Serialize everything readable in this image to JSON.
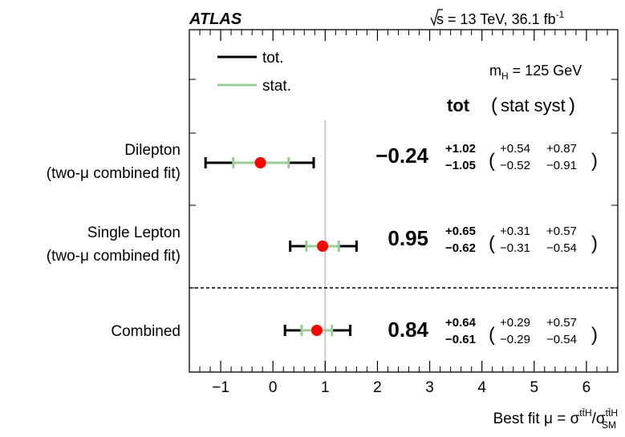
{
  "header": {
    "experiment": "ATLAS",
    "energy_prefix": "s",
    "energy_text": " = 13 TeV, 36.1 fb",
    "lumi_exp": "-1"
  },
  "annotation": {
    "mh_m": "m",
    "mh_sub": "H",
    "mh_rest": " = 125 GeV",
    "tot": "tot",
    "stat_syst_open": "(",
    "stat_syst": "stat  syst",
    "stat_syst_close": ")"
  },
  "legend": {
    "tot_label": "tot.",
    "stat_label": "stat.",
    "tot_color": "#000000",
    "stat_color": "#99cc99"
  },
  "xaxis": {
    "title_prefix": "Best fit μ = σ",
    "title_num_sup": "tt̄H",
    "title_slash": "/σ",
    "title_den_sup": "tt̄H",
    "title_den_sub": "SM"
  },
  "chart_data": {
    "type": "scatter",
    "title": "",
    "xlabel": "Best fit μ = σ^{ttH}/σ^{ttH}_{SM}",
    "ylabel": "",
    "xlim": [
      -1.6,
      6.6
    ],
    "xticks": [
      "−1",
      "0",
      "1",
      "2",
      "3",
      "4",
      "5",
      "6"
    ],
    "xtick_values": [
      -1,
      0,
      1,
      2,
      3,
      4,
      5,
      6
    ],
    "reference_line": 1,
    "marker_color": "#ff0000",
    "grid": false,
    "legend_position": "top-left",
    "rows": [
      {
        "label_line1": "Dilepton",
        "label_line2": "(two-μ combined fit)",
        "mu": -0.24,
        "mu_text": "−0.24",
        "tot_up": 1.02,
        "tot_down": 1.05,
        "tot_up_text": "+1.02",
        "tot_down_text": "−1.05",
        "stat_up": 0.54,
        "stat_down": 0.52,
        "stat_up_text": "+0.54",
        "stat_down_text": "−0.52",
        "syst_up_text": "+0.87",
        "syst_down_text": "−0.91"
      },
      {
        "label_line1": "Single Lepton",
        "label_line2": "(two-μ combined fit)",
        "mu": 0.95,
        "mu_text": "0.95",
        "tot_up": 0.65,
        "tot_down": 0.62,
        "tot_up_text": "+0.65",
        "tot_down_text": "−0.62",
        "stat_up": 0.31,
        "stat_down": 0.31,
        "stat_up_text": "+0.31",
        "stat_down_text": "−0.31",
        "syst_up_text": "+0.57",
        "syst_down_text": "−0.54"
      },
      {
        "label_line1": "Combined",
        "label_line2": "",
        "mu": 0.84,
        "mu_text": "0.84",
        "tot_up": 0.64,
        "tot_down": 0.61,
        "tot_up_text": "+0.64",
        "tot_down_text": "−0.61",
        "stat_up": 0.29,
        "stat_down": 0.29,
        "stat_up_text": "+0.29",
        "stat_down_text": "−0.29",
        "syst_up_text": "+0.57",
        "syst_down_text": "−0.54"
      }
    ]
  }
}
